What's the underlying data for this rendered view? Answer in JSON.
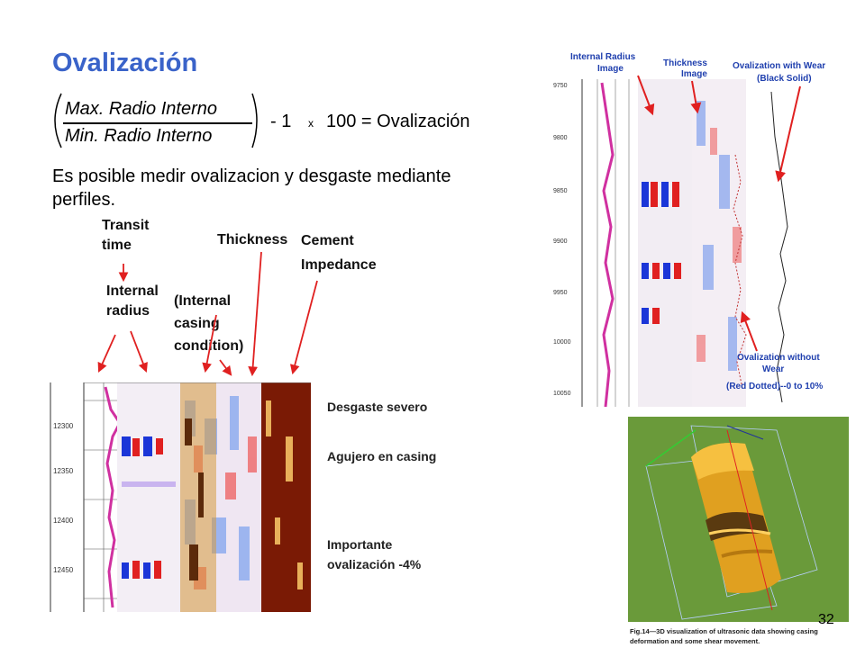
{
  "slide": {
    "title": "Ovalización",
    "formula": {
      "numerator": "Max. Radio Interno",
      "denominator": "Min. Radio Interno",
      "minus_one": "- 1",
      "times": "x",
      "result": "100 = Ovalización"
    },
    "body": "Es posible medir ovalizacion y desgaste mediante perfiles.",
    "page_number": "32"
  },
  "left_figure": {
    "labels": {
      "transit_line1": "Transit",
      "transit_line2": "time",
      "internal_line1": "Internal",
      "internal_line2": "radius",
      "casing_line1": "(Internal",
      "casing_line2": "casing",
      "casing_line3": "condition)",
      "thickness": "Thickness",
      "cement_line1": "Cement",
      "cement_line2": "Impedance"
    },
    "depths": [
      "12300",
      "12350",
      "12400",
      "12450"
    ],
    "callouts": {
      "wear": "Desgaste  severo",
      "hole": "Agujero en casing",
      "oval_line1": "Importante",
      "oval_line2": "ovalización -4%"
    }
  },
  "right_figure": {
    "labels": {
      "internal_line1": "Internal Radius",
      "internal_line2": "Image",
      "thickness_line1": "Thickness",
      "thickness_line2": "Image",
      "wear_line1": "Ovalization with Wear",
      "wear_line2": "(Black Solid)",
      "nowear_line1": "Ovalization without",
      "nowear_line2": "Wear",
      "nowear_line3": "(Red Dotted)--0 to 10%"
    },
    "depths": [
      "9750",
      "9800",
      "9850",
      "9900",
      "9950",
      "10000",
      "10050"
    ]
  },
  "viz3d": {
    "caption_line1": "Fig.14—3D visualization of ultrasonic data showing casing",
    "caption_line2": "deformation and some shear movement."
  }
}
